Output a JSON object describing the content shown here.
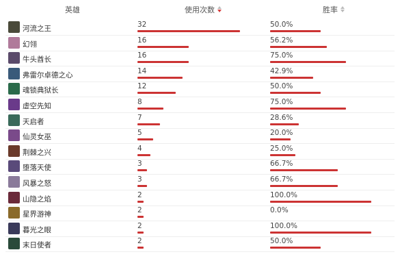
{
  "table": {
    "headers": {
      "hero": "英雄",
      "uses": "使用次数",
      "winrate": "胜率"
    },
    "sort": {
      "active_column": "uses",
      "direction": "desc"
    },
    "bar_color": "#cc3333",
    "rows": [
      {
        "hero": "河流之王",
        "uses": "32",
        "uses_value": 32,
        "winrate": "50.0%",
        "winrate_value": 50.0,
        "avatar_color": "#4a4a3a"
      },
      {
        "hero": "幻翎",
        "uses": "16",
        "uses_value": 16,
        "winrate": "56.2%",
        "winrate_value": 56.2,
        "avatar_color": "#b07a9a"
      },
      {
        "hero": "牛头酋长",
        "uses": "16",
        "uses_value": 16,
        "winrate": "75.0%",
        "winrate_value": 75.0,
        "avatar_color": "#5a4a6a"
      },
      {
        "hero": "弗雷尔卓德之心",
        "uses": "14",
        "uses_value": 14,
        "winrate": "42.9%",
        "winrate_value": 42.9,
        "avatar_color": "#3a5a7a"
      },
      {
        "hero": "魂锁典狱长",
        "uses": "12",
        "uses_value": 12,
        "winrate": "50.0%",
        "winrate_value": 50.0,
        "avatar_color": "#2a6a4a"
      },
      {
        "hero": "虚空先知",
        "uses": "8",
        "uses_value": 8,
        "winrate": "75.0%",
        "winrate_value": 75.0,
        "avatar_color": "#6a3a8a"
      },
      {
        "hero": "天启者",
        "uses": "7",
        "uses_value": 7,
        "winrate": "28.6%",
        "winrate_value": 28.6,
        "avatar_color": "#3a6a5a"
      },
      {
        "hero": "仙灵女巫",
        "uses": "5",
        "uses_value": 5,
        "winrate": "20.0%",
        "winrate_value": 20.0,
        "avatar_color": "#7a4a8a"
      },
      {
        "hero": "荆棘之兴",
        "uses": "4",
        "uses_value": 4,
        "winrate": "25.0%",
        "winrate_value": 25.0,
        "avatar_color": "#6a3a2a"
      },
      {
        "hero": "堕落天使",
        "uses": "3",
        "uses_value": 3,
        "winrate": "66.7%",
        "winrate_value": 66.7,
        "avatar_color": "#5a4a7a"
      },
      {
        "hero": "风暴之怒",
        "uses": "3",
        "uses_value": 3,
        "winrate": "66.7%",
        "winrate_value": 66.7,
        "avatar_color": "#8a7a9a"
      },
      {
        "hero": "山隐之焰",
        "uses": "2",
        "uses_value": 2,
        "winrate": "100.0%",
        "winrate_value": 100.0,
        "avatar_color": "#6a2a3a"
      },
      {
        "hero": "星界游神",
        "uses": "2",
        "uses_value": 2,
        "winrate": "0.0%",
        "winrate_value": 0.0,
        "avatar_color": "#8a6a2a"
      },
      {
        "hero": "暮光之眼",
        "uses": "2",
        "uses_value": 2,
        "winrate": "100.0%",
        "winrate_value": 100.0,
        "avatar_color": "#3a3a5a"
      },
      {
        "hero": "末日使者",
        "uses": "2",
        "uses_value": 2,
        "winrate": "50.0%",
        "winrate_value": 50.0,
        "avatar_color": "#2a4a3a"
      }
    ]
  }
}
